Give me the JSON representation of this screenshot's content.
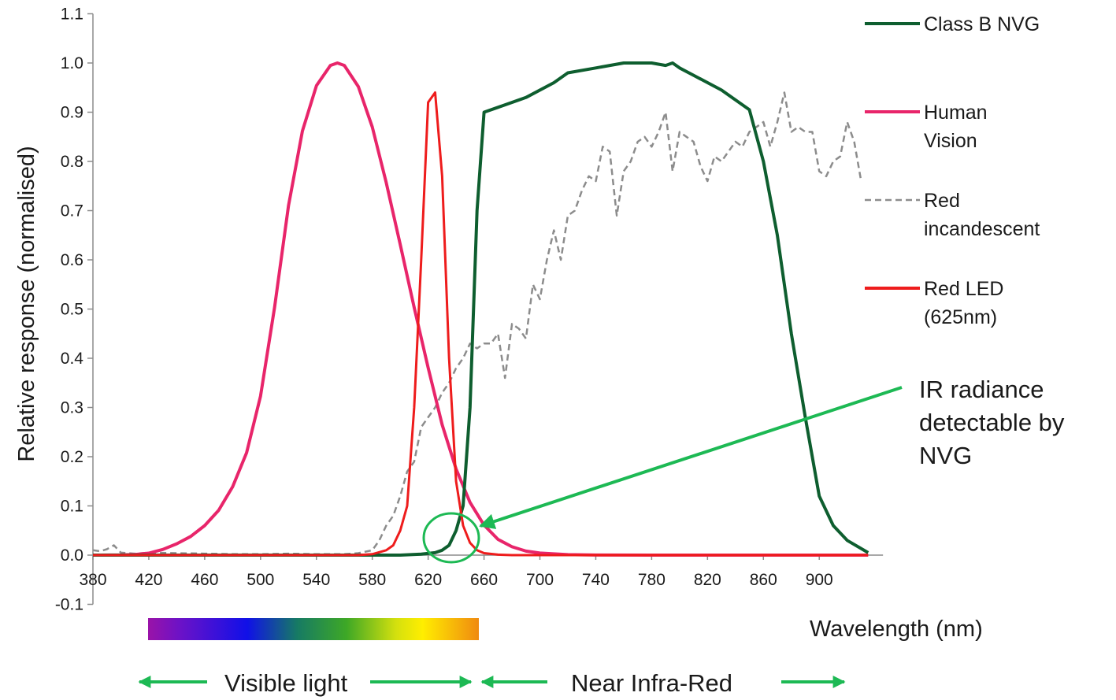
{
  "chart_data": {
    "type": "line",
    "title": "",
    "xlabel": "Wavelength (nm)",
    "ylabel": "Relative response (normalised)",
    "xlim": [
      380,
      940
    ],
    "ylim": [
      -0.1,
      1.1
    ],
    "x_ticks": [
      "380",
      "420",
      "460",
      "500",
      "540",
      "580",
      "620",
      "660",
      "700",
      "740",
      "780",
      "820",
      "860",
      "900"
    ],
    "y_ticks": [
      "-0.1",
      "0.0",
      "0.1",
      "0.2",
      "0.3",
      "0.4",
      "0.5",
      "0.6",
      "0.7",
      "0.8",
      "0.9",
      "1.0",
      "1.1"
    ],
    "grid": false,
    "legend_position": "right",
    "series": [
      {
        "name": "Class B NVG",
        "color": "#0e5e2f",
        "style": "solid",
        "points": [
          [
            380,
            0
          ],
          [
            600,
            0
          ],
          [
            615,
            0.002
          ],
          [
            625,
            0.005
          ],
          [
            630,
            0.01
          ],
          [
            635,
            0.02
          ],
          [
            640,
            0.05
          ],
          [
            645,
            0.1
          ],
          [
            650,
            0.3
          ],
          [
            655,
            0.7
          ],
          [
            660,
            0.9
          ],
          [
            670,
            0.91
          ],
          [
            690,
            0.93
          ],
          [
            710,
            0.96
          ],
          [
            720,
            0.98
          ],
          [
            740,
            0.99
          ],
          [
            760,
            1.0
          ],
          [
            780,
            1.0
          ],
          [
            790,
            0.995
          ],
          [
            795,
            1.0
          ],
          [
            800,
            0.99
          ],
          [
            810,
            0.975
          ],
          [
            830,
            0.945
          ],
          [
            840,
            0.925
          ],
          [
            850,
            0.905
          ],
          [
            860,
            0.8
          ],
          [
            870,
            0.65
          ],
          [
            880,
            0.45
          ],
          [
            890,
            0.28
          ],
          [
            900,
            0.12
          ],
          [
            910,
            0.06
          ],
          [
            920,
            0.03
          ],
          [
            935,
            0.005
          ]
        ]
      },
      {
        "name": "Human Vision",
        "color": "#e8256a",
        "style": "solid",
        "points": [
          [
            380,
            0
          ],
          [
            400,
            0.0004
          ],
          [
            410,
            0.0012
          ],
          [
            420,
            0.004
          ],
          [
            430,
            0.0116
          ],
          [
            440,
            0.023
          ],
          [
            450,
            0.038
          ],
          [
            460,
            0.06
          ],
          [
            470,
            0.091
          ],
          [
            480,
            0.139
          ],
          [
            490,
            0.208
          ],
          [
            500,
            0.323
          ],
          [
            510,
            0.503
          ],
          [
            520,
            0.71
          ],
          [
            530,
            0.862
          ],
          [
            540,
            0.954
          ],
          [
            550,
            0.995
          ],
          [
            555,
            1.0
          ],
          [
            560,
            0.995
          ],
          [
            570,
            0.952
          ],
          [
            580,
            0.87
          ],
          [
            590,
            0.757
          ],
          [
            600,
            0.631
          ],
          [
            610,
            0.503
          ],
          [
            620,
            0.381
          ],
          [
            630,
            0.265
          ],
          [
            640,
            0.175
          ],
          [
            650,
            0.107
          ],
          [
            660,
            0.061
          ],
          [
            670,
            0.032
          ],
          [
            680,
            0.017
          ],
          [
            690,
            0.0082
          ],
          [
            700,
            0.0041
          ],
          [
            720,
            0.001
          ],
          [
            740,
            0.0002
          ],
          [
            780,
            0
          ],
          [
            935,
            0
          ]
        ]
      },
      {
        "name": "Red incandescent",
        "color": "#8c8c8c",
        "style": "dashed",
        "points": [
          [
            380,
            0.01
          ],
          [
            385,
            0.008
          ],
          [
            390,
            0.012
          ],
          [
            395,
            0.02
          ],
          [
            400,
            0.005
          ],
          [
            405,
            0.004
          ],
          [
            410,
            0.003
          ],
          [
            420,
            0.005
          ],
          [
            440,
            0.004
          ],
          [
            460,
            0.003
          ],
          [
            480,
            0.002
          ],
          [
            500,
            0.002
          ],
          [
            520,
            0.003
          ],
          [
            540,
            0.002
          ],
          [
            560,
            0.002
          ],
          [
            570,
            0.004
          ],
          [
            580,
            0.01
          ],
          [
            585,
            0.03
          ],
          [
            590,
            0.06
          ],
          [
            595,
            0.08
          ],
          [
            600,
            0.12
          ],
          [
            605,
            0.17
          ],
          [
            610,
            0.19
          ],
          [
            615,
            0.26
          ],
          [
            620,
            0.28
          ],
          [
            625,
            0.3
          ],
          [
            630,
            0.33
          ],
          [
            635,
            0.35
          ],
          [
            640,
            0.38
          ],
          [
            645,
            0.4
          ],
          [
            650,
            0.43
          ],
          [
            655,
            0.42
          ],
          [
            660,
            0.43
          ],
          [
            665,
            0.43
          ],
          [
            670,
            0.45
          ],
          [
            675,
            0.36
          ],
          [
            680,
            0.47
          ],
          [
            685,
            0.46
          ],
          [
            690,
            0.44
          ],
          [
            695,
            0.55
          ],
          [
            700,
            0.52
          ],
          [
            705,
            0.6
          ],
          [
            710,
            0.66
          ],
          [
            715,
            0.6
          ],
          [
            720,
            0.69
          ],
          [
            725,
            0.7
          ],
          [
            730,
            0.74
          ],
          [
            735,
            0.77
          ],
          [
            740,
            0.76
          ],
          [
            745,
            0.83
          ],
          [
            750,
            0.82
          ],
          [
            755,
            0.69
          ],
          [
            760,
            0.78
          ],
          [
            765,
            0.8
          ],
          [
            770,
            0.84
          ],
          [
            775,
            0.85
          ],
          [
            780,
            0.83
          ],
          [
            785,
            0.86
          ],
          [
            790,
            0.9
          ],
          [
            795,
            0.78
          ],
          [
            800,
            0.86
          ],
          [
            805,
            0.85
          ],
          [
            810,
            0.84
          ],
          [
            815,
            0.79
          ],
          [
            820,
            0.76
          ],
          [
            825,
            0.81
          ],
          [
            830,
            0.8
          ],
          [
            835,
            0.82
          ],
          [
            840,
            0.84
          ],
          [
            845,
            0.83
          ],
          [
            850,
            0.86
          ],
          [
            855,
            0.87
          ],
          [
            860,
            0.88
          ],
          [
            865,
            0.83
          ],
          [
            870,
            0.88
          ],
          [
            875,
            0.94
          ],
          [
            880,
            0.86
          ],
          [
            885,
            0.87
          ],
          [
            890,
            0.86
          ],
          [
            895,
            0.86
          ],
          [
            900,
            0.78
          ],
          [
            905,
            0.77
          ],
          [
            910,
            0.8
          ],
          [
            915,
            0.81
          ],
          [
            920,
            0.88
          ],
          [
            925,
            0.84
          ],
          [
            930,
            0.76
          ]
        ]
      },
      {
        "name": "Red LED\n(625nm)",
        "color": "#ee1c1c",
        "style": "solid",
        "points": [
          [
            380,
            0
          ],
          [
            570,
            0
          ],
          [
            580,
            0.002
          ],
          [
            590,
            0.01
          ],
          [
            595,
            0.02
          ],
          [
            600,
            0.05
          ],
          [
            605,
            0.1
          ],
          [
            610,
            0.3
          ],
          [
            615,
            0.6
          ],
          [
            620,
            0.92
          ],
          [
            625,
            0.94
          ],
          [
            630,
            0.77
          ],
          [
            635,
            0.4
          ],
          [
            640,
            0.15
          ],
          [
            645,
            0.06
          ],
          [
            650,
            0.025
          ],
          [
            655,
            0.01
          ],
          [
            660,
            0.004
          ],
          [
            670,
            0.001
          ],
          [
            680,
            0
          ],
          [
            935,
            0
          ]
        ]
      }
    ],
    "annotations": {
      "ir_note": "IR radiance\ndetectable by\nNVG",
      "visible_light": "Visible light",
      "near_infra_red": "Near Infra-Red"
    },
    "accent_color": "#1db954"
  }
}
